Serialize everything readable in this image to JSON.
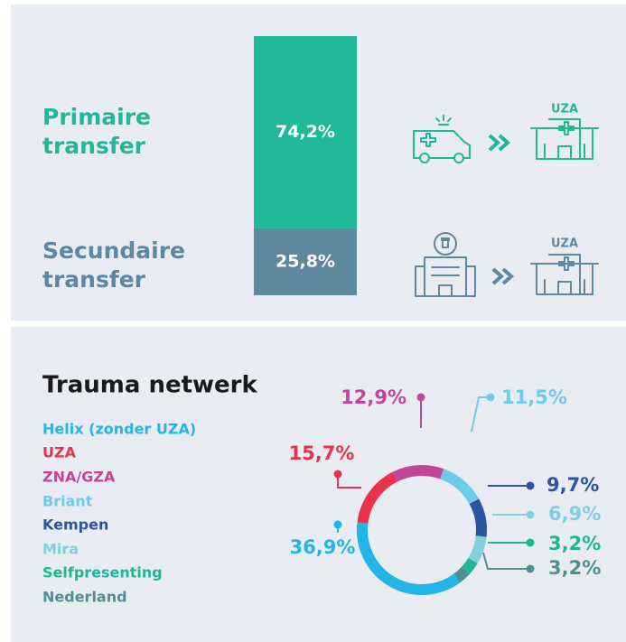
{
  "chart_data": [
    {
      "type": "stacked_bar",
      "series": [
        {
          "name": "Primaire transfer",
          "color": "#1fb899",
          "values": [
            74.2
          ],
          "value_labels": [
            "74,2%"
          ]
        },
        {
          "name": "Secundaire transfer",
          "color": "#5e87a0",
          "values": [
            25.8
          ],
          "value_labels": [
            "25,8%"
          ]
        }
      ]
    },
    {
      "type": "donut",
      "title": "Trauma netwerk",
      "categories": [
        "Helix (zonder UZA)",
        "UZA",
        "ZNA/GZA",
        "Briant",
        "Kempen",
        "Mira",
        "Selfpresenting",
        "Nederland"
      ],
      "values": [
        36.9,
        15.7,
        12.9,
        11.5,
        9.7,
        6.9,
        3.2,
        3.2
      ],
      "value_labels": [
        "36,9%",
        "15,7%",
        "12,9%",
        "11,5%",
        "9,7%",
        "6,9%",
        "3,2%",
        "3,2%"
      ],
      "colors": [
        "#22b5e6",
        "#e8334e",
        "#c2459b",
        "#6ecbeb",
        "#2b55a3",
        "#82d0df",
        "#1db796",
        "#4f8f94"
      ]
    }
  ],
  "icon_labels": [
    "UZA",
    "UZA"
  ]
}
